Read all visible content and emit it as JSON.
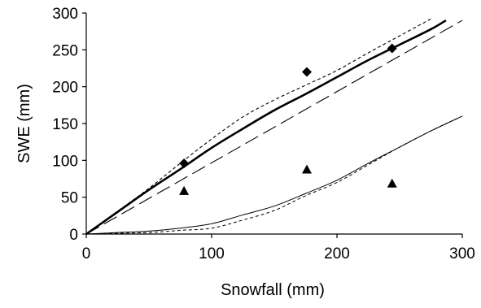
{
  "chart_data": {
    "type": "line",
    "xlabel": "Snowfall (mm)",
    "ylabel": "SWE (mm)",
    "xlim": [
      0,
      300
    ],
    "ylim": [
      0,
      300
    ],
    "xticks": [
      "0",
      "100",
      "200",
      "300"
    ],
    "yticks": [
      "0",
      "50",
      "100",
      "150",
      "200",
      "250",
      "300"
    ],
    "grid": false,
    "legend": "none",
    "series": [
      {
        "style": "thick-solid",
        "color": "#000000",
        "x": [
          0,
          25,
          50,
          75,
          100,
          125,
          150,
          175,
          200,
          225,
          250,
          275,
          287
        ],
        "y": [
          0,
          30,
          60,
          88,
          117,
          143,
          168,
          190,
          213,
          236,
          257,
          278,
          290
        ]
      },
      {
        "style": "short-dash",
        "color": "#000000",
        "x": [
          0,
          25,
          50,
          75,
          100,
          125,
          150,
          175,
          200,
          225,
          250,
          275
        ],
        "y": [
          0,
          31,
          62,
          96,
          129,
          159,
          182,
          202,
          222,
          246,
          269,
          292
        ]
      },
      {
        "style": "long-dash",
        "color": "#000000",
        "x": [
          0,
          300
        ],
        "y": [
          0,
          290
        ]
      },
      {
        "style": "thin-solid",
        "color": "#000000",
        "x": [
          0,
          25,
          50,
          75,
          100,
          125,
          150,
          175,
          200,
          225,
          250,
          275,
          300
        ],
        "y": [
          0,
          2,
          4,
          8,
          14,
          26,
          38,
          55,
          73,
          96,
          118,
          140,
          160
        ]
      },
      {
        "style": "thin-dash",
        "color": "#000000",
        "x": [
          0,
          25,
          50,
          75,
          100,
          125,
          150,
          175,
          200,
          225,
          250,
          275,
          300
        ],
        "y": [
          0,
          1,
          2,
          5,
          8,
          19,
          32,
          52,
          70,
          94,
          118,
          140,
          160
        ]
      }
    ],
    "points": [
      {
        "marker": "diamond",
        "x": [
          78,
          176,
          244
        ],
        "y": [
          96,
          220,
          252
        ]
      },
      {
        "marker": "triangle",
        "x": [
          78,
          176,
          244
        ],
        "y": [
          58,
          87,
          68
        ]
      }
    ]
  }
}
